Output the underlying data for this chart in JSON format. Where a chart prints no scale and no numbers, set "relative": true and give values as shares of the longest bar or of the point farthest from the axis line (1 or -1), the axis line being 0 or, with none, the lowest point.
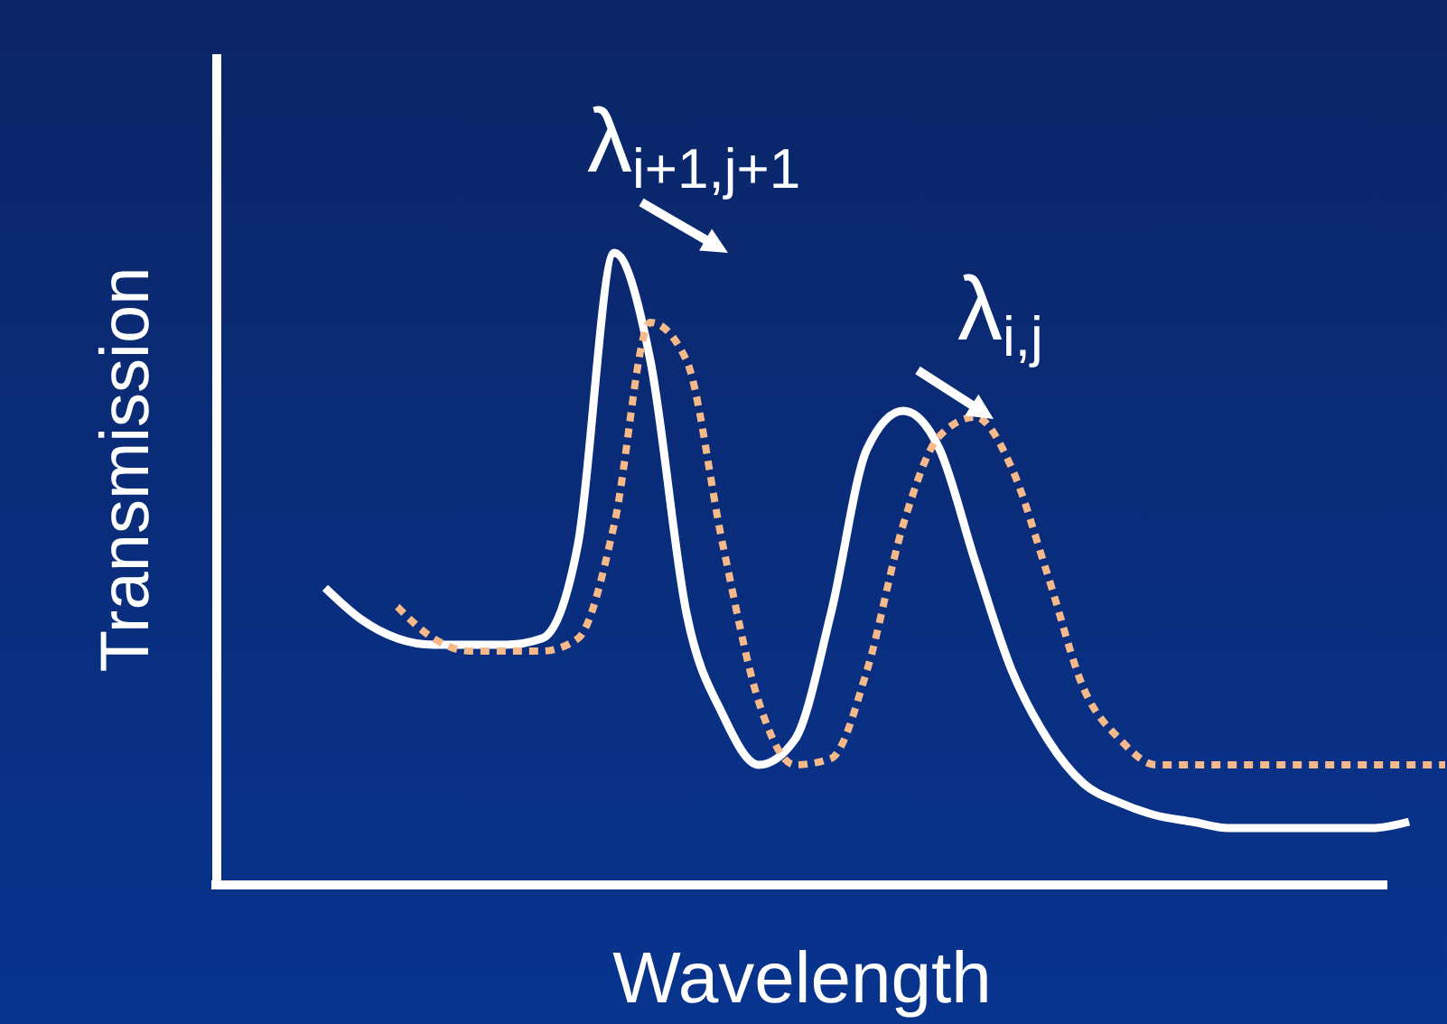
{
  "chart_data": {
    "type": "line",
    "relative": true,
    "xlabel": "Wavelength",
    "ylabel": "Transmission",
    "categories": [
      null,
      null,
      null,
      null,
      null,
      null,
      null,
      null,
      null,
      null,
      null,
      null,
      null,
      null,
      null,
      null,
      null,
      null,
      null,
      null,
      null,
      null,
      null,
      null,
      null,
      null,
      null,
      null,
      null,
      null,
      null,
      null
    ],
    "series": [
      {
        "color": "#ffffff",
        "line_style": "solid",
        "values": [
          0.47,
          0.42,
          0.39,
          0.38,
          0.38,
          0.38,
          0.39,
          0.54,
          1,
          0.83,
          0.43,
          0.27,
          0.19,
          0.23,
          0.43,
          0.69,
          0.75,
          0.69,
          0.51,
          0.34,
          0.23,
          0.16,
          0.13,
          0.11,
          0.1,
          0.09,
          0.09,
          0.09,
          0.09,
          0.09,
          0.1,
          null
        ]
      },
      {
        "color": "#f5b98a",
        "line_style": "dotted",
        "values": [
          null,
          null,
          0.44,
          0.39,
          0.37,
          0.37,
          0.37,
          0.39,
          0.57,
          0.89,
          0.83,
          0.54,
          0.29,
          0.19,
          0.2,
          0.34,
          0.57,
          0.71,
          0.74,
          0.66,
          0.49,
          0.31,
          0.23,
          0.19,
          0.19,
          0.19,
          0.19,
          0.19,
          0.19,
          0.19,
          0.19,
          0.19
        ]
      }
    ],
    "annotations": [
      "λ$_{i+1,j+1}$",
      "λ$_{i,j}$"
    ]
  }
}
